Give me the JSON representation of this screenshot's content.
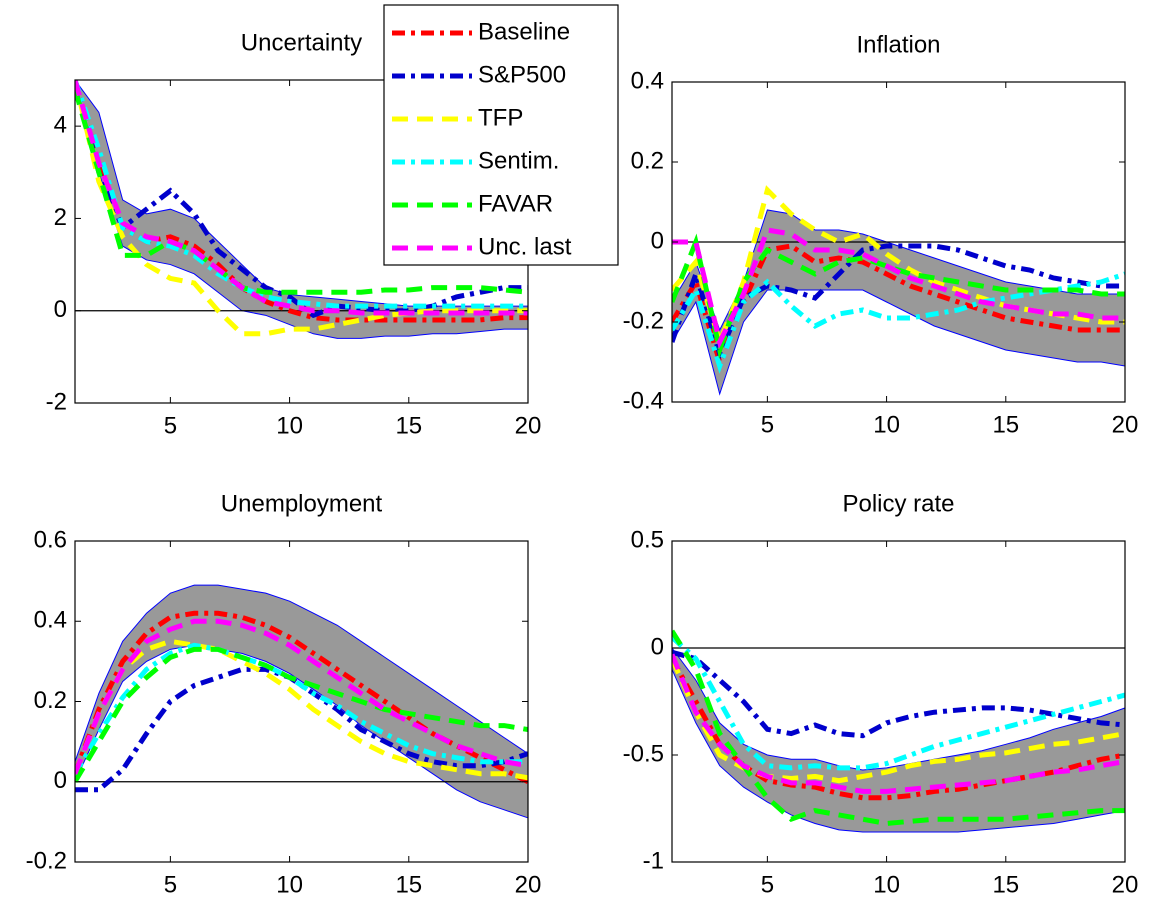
{
  "chart_data": [
    {
      "type": "line",
      "title": "Uncertainty",
      "x": [
        1,
        2,
        3,
        4,
        5,
        6,
        7,
        8,
        9,
        10,
        11,
        12,
        13,
        14,
        15,
        16,
        17,
        18,
        19,
        20
      ],
      "xlim": [
        1,
        20
      ],
      "xticks": [
        5,
        10,
        15,
        20
      ],
      "ylim": [
        -2,
        5
      ],
      "yticks": [
        -2,
        0,
        2,
        4
      ],
      "reference_line": 0,
      "band": {
        "color": "#999999",
        "edge_color": "#0000ff",
        "upper": [
          5,
          4.3,
          2.4,
          2.1,
          2.2,
          2.0,
          1.5,
          1.0,
          0.5,
          0.35,
          0.3,
          0.25,
          0.2,
          0.15,
          0.1,
          0.1,
          0.1,
          0.1,
          0.1,
          0.1
        ],
        "lower": [
          5,
          3.0,
          1.4,
          1.1,
          1.0,
          0.8,
          0.4,
          0.0,
          -0.1,
          -0.3,
          -0.5,
          -0.6,
          -0.6,
          -0.55,
          -0.55,
          -0.5,
          -0.5,
          -0.45,
          -0.4,
          -0.4
        ]
      },
      "series": [
        {
          "name": "Baseline",
          "color": "#ff0000",
          "dash": "dashdot",
          "values": [
            5,
            3.3,
            1.8,
            1.5,
            1.6,
            1.4,
            1.0,
            0.5,
            0.2,
            0.0,
            -0.15,
            -0.2,
            -0.2,
            -0.2,
            -0.2,
            -0.2,
            -0.2,
            -0.2,
            -0.15,
            -0.15
          ]
        },
        {
          "name": "S&P500",
          "color": "#0000cc",
          "dash": "dashdot",
          "values": [
            5,
            3.0,
            1.8,
            2.2,
            2.6,
            2.1,
            1.3,
            0.9,
            0.5,
            0.3,
            -0.1,
            0.1,
            0.05,
            0.0,
            0.0,
            0.1,
            0.3,
            0.4,
            0.5,
            0.5
          ]
        },
        {
          "name": "TFP",
          "color": "#ffff00",
          "dash": "dashed",
          "values": [
            5,
            2.8,
            1.6,
            1.0,
            0.7,
            0.6,
            0.0,
            -0.5,
            -0.5,
            -0.4,
            -0.4,
            -0.3,
            -0.2,
            -0.1,
            -0.05,
            0.0,
            0.0,
            0.0,
            0.0,
            0.0
          ]
        },
        {
          "name": "Sentim.",
          "color": "#00ffff",
          "dash": "dashdot",
          "values": [
            5,
            3.5,
            1.8,
            1.5,
            1.4,
            1.2,
            0.8,
            0.5,
            0.3,
            0.2,
            0.15,
            0.1,
            0.1,
            0.1,
            0.1,
            0.1,
            0.1,
            0.1,
            0.1,
            0.1
          ]
        },
        {
          "name": "FAVAR",
          "color": "#00ff00",
          "dash": "dashed",
          "values": [
            4.8,
            3.0,
            1.2,
            1.2,
            1.5,
            1.3,
            0.9,
            0.5,
            0.4,
            0.4,
            0.4,
            0.4,
            0.4,
            0.45,
            0.45,
            0.5,
            0.5,
            0.5,
            0.45,
            0.4
          ]
        },
        {
          "name": "Unc. last",
          "color": "#ff00ff",
          "dash": "dashed",
          "values": [
            5,
            3.2,
            1.9,
            1.6,
            1.5,
            1.3,
            0.9,
            0.5,
            0.2,
            0.1,
            0.0,
            0.0,
            -0.05,
            -0.05,
            -0.05,
            -0.05,
            -0.05,
            -0.05,
            -0.05,
            -0.05
          ]
        }
      ]
    },
    {
      "type": "line",
      "title": "Inflation",
      "x": [
        1,
        2,
        3,
        4,
        5,
        6,
        7,
        8,
        9,
        10,
        11,
        12,
        13,
        14,
        15,
        16,
        17,
        18,
        19,
        20
      ],
      "xlim": [
        1,
        20
      ],
      "xticks": [
        5,
        10,
        15,
        20
      ],
      "ylim": [
        -0.4,
        0.4
      ],
      "yticks": [
        -0.4,
        -0.2,
        0,
        0.2,
        0.4
      ],
      "reference_line": 0,
      "band": {
        "color": "#999999",
        "edge_color": "#0000ff",
        "upper": [
          -0.15,
          -0.05,
          -0.22,
          -0.1,
          0.08,
          0.07,
          0.03,
          0.03,
          0.02,
          0.0,
          -0.02,
          -0.04,
          -0.06,
          -0.08,
          -0.1,
          -0.11,
          -0.12,
          -0.13,
          -0.13,
          -0.13
        ],
        "lower": [
          -0.25,
          -0.15,
          -0.38,
          -0.2,
          -0.12,
          -0.12,
          -0.12,
          -0.12,
          -0.12,
          -0.15,
          -0.18,
          -0.21,
          -0.23,
          -0.25,
          -0.27,
          -0.28,
          -0.29,
          -0.3,
          -0.3,
          -0.31
        ]
      },
      "series": [
        {
          "color": "#ff0000",
          "dash": "dashdot",
          "values": [
            -0.2,
            -0.1,
            -0.3,
            -0.15,
            -0.02,
            -0.01,
            -0.05,
            -0.04,
            -0.05,
            -0.08,
            -0.11,
            -0.13,
            -0.15,
            -0.17,
            -0.19,
            -0.2,
            -0.21,
            -0.22,
            -0.22,
            -0.22
          ]
        },
        {
          "color": "#0000cc",
          "dash": "dashdot",
          "values": [
            -0.25,
            -0.08,
            -0.28,
            -0.14,
            -0.11,
            -0.12,
            -0.14,
            -0.08,
            -0.02,
            -0.01,
            -0.01,
            -0.01,
            -0.02,
            -0.04,
            -0.06,
            -0.07,
            -0.09,
            -0.1,
            -0.11,
            -0.11
          ]
        },
        {
          "color": "#ffff00",
          "dash": "dashed",
          "values": [
            -0.12,
            -0.05,
            -0.25,
            -0.1,
            0.13,
            0.07,
            0.03,
            0.0,
            0.02,
            -0.03,
            -0.07,
            -0.1,
            -0.12,
            -0.14,
            -0.16,
            -0.17,
            -0.18,
            -0.19,
            -0.2,
            -0.2
          ]
        },
        {
          "color": "#00ffff",
          "dash": "dashdot",
          "values": [
            -0.22,
            -0.12,
            -0.31,
            -0.15,
            -0.1,
            -0.16,
            -0.21,
            -0.18,
            -0.17,
            -0.19,
            -0.19,
            -0.18,
            -0.17,
            -0.15,
            -0.14,
            -0.13,
            -0.12,
            -0.11,
            -0.1,
            -0.08
          ]
        },
        {
          "color": "#00ff00",
          "dash": "dashed",
          "values": [
            -0.15,
            0.0,
            -0.27,
            -0.1,
            -0.02,
            -0.05,
            -0.08,
            -0.05,
            -0.04,
            -0.06,
            -0.08,
            -0.09,
            -0.1,
            -0.11,
            -0.12,
            -0.12,
            -0.12,
            -0.12,
            -0.13,
            -0.13
          ]
        },
        {
          "color": "#ff00ff",
          "dash": "dashed",
          "values": [
            0.0,
            0.0,
            -0.25,
            -0.13,
            0.03,
            0.02,
            -0.02,
            -0.02,
            -0.03,
            -0.06,
            -0.09,
            -0.11,
            -0.13,
            -0.15,
            -0.16,
            -0.17,
            -0.18,
            -0.18,
            -0.19,
            -0.19
          ]
        }
      ]
    },
    {
      "type": "line",
      "title": "Unemployment",
      "x": [
        1,
        2,
        3,
        4,
        5,
        6,
        7,
        8,
        9,
        10,
        11,
        12,
        13,
        14,
        15,
        16,
        17,
        18,
        19,
        20
      ],
      "xlim": [
        1,
        20
      ],
      "xticks": [
        5,
        10,
        15,
        20
      ],
      "ylim": [
        -0.2,
        0.6
      ],
      "yticks": [
        -0.2,
        0,
        0.2,
        0.4,
        0.6
      ],
      "reference_line": 0,
      "band": {
        "color": "#999999",
        "edge_color": "#0000ff",
        "upper": [
          0.05,
          0.22,
          0.35,
          0.42,
          0.47,
          0.49,
          0.49,
          0.48,
          0.47,
          0.45,
          0.42,
          0.39,
          0.35,
          0.31,
          0.27,
          0.23,
          0.19,
          0.15,
          0.11,
          0.07
        ],
        "lower": [
          0.0,
          0.13,
          0.25,
          0.3,
          0.33,
          0.34,
          0.33,
          0.32,
          0.3,
          0.27,
          0.23,
          0.19,
          0.14,
          0.1,
          0.06,
          0.02,
          -0.02,
          -0.05,
          -0.07,
          -0.09
        ]
      },
      "series": [
        {
          "color": "#ff0000",
          "dash": "dashdot",
          "values": [
            0.02,
            0.18,
            0.3,
            0.37,
            0.41,
            0.42,
            0.42,
            0.41,
            0.39,
            0.36,
            0.32,
            0.28,
            0.24,
            0.2,
            0.16,
            0.12,
            0.09,
            0.06,
            0.03,
            0.0
          ]
        },
        {
          "color": "#0000cc",
          "dash": "dashdot",
          "values": [
            -0.02,
            -0.02,
            0.03,
            0.12,
            0.2,
            0.24,
            0.26,
            0.28,
            0.28,
            0.26,
            0.22,
            0.18,
            0.13,
            0.1,
            0.07,
            0.05,
            0.04,
            0.04,
            0.05,
            0.07
          ]
        },
        {
          "color": "#ffff00",
          "dash": "dashed",
          "values": [
            0.02,
            0.17,
            0.28,
            0.33,
            0.35,
            0.34,
            0.33,
            0.3,
            0.27,
            0.23,
            0.18,
            0.14,
            0.1,
            0.07,
            0.05,
            0.04,
            0.03,
            0.02,
            0.02,
            0.01
          ]
        },
        {
          "color": "#00ffff",
          "dash": "dashdot",
          "values": [
            0.02,
            0.12,
            0.21,
            0.28,
            0.32,
            0.34,
            0.33,
            0.31,
            0.29,
            0.26,
            0.22,
            0.19,
            0.15,
            0.12,
            0.09,
            0.07,
            0.06,
            0.05,
            0.05,
            0.05
          ]
        },
        {
          "color": "#00ff00",
          "dash": "dashed",
          "values": [
            0.0,
            0.1,
            0.2,
            0.26,
            0.31,
            0.33,
            0.33,
            0.31,
            0.29,
            0.26,
            0.24,
            0.22,
            0.2,
            0.18,
            0.17,
            0.16,
            0.15,
            0.14,
            0.14,
            0.13
          ]
        },
        {
          "color": "#ff00ff",
          "dash": "dashed",
          "values": [
            0.02,
            0.17,
            0.28,
            0.35,
            0.38,
            0.4,
            0.4,
            0.39,
            0.37,
            0.34,
            0.3,
            0.26,
            0.22,
            0.18,
            0.15,
            0.12,
            0.09,
            0.07,
            0.05,
            0.04
          ]
        }
      ]
    },
    {
      "type": "line",
      "title": "Policy rate",
      "x": [
        1,
        2,
        3,
        4,
        5,
        6,
        7,
        8,
        9,
        10,
        11,
        12,
        13,
        14,
        15,
        16,
        17,
        18,
        19,
        20
      ],
      "xlim": [
        1,
        20
      ],
      "xticks": [
        5,
        10,
        15,
        20
      ],
      "ylim": [
        -1,
        0.5
      ],
      "yticks": [
        -1,
        -0.5,
        0,
        0.5
      ],
      "reference_line": 0,
      "band": {
        "color": "#999999",
        "edge_color": "#0000ff",
        "upper": [
          0.0,
          -0.15,
          -0.35,
          -0.45,
          -0.5,
          -0.52,
          -0.52,
          -0.55,
          -0.57,
          -0.56,
          -0.54,
          -0.52,
          -0.5,
          -0.48,
          -0.45,
          -0.42,
          -0.38,
          -0.35,
          -0.32,
          -0.28
        ],
        "lower": [
          -0.1,
          -0.35,
          -0.55,
          -0.65,
          -0.72,
          -0.78,
          -0.82,
          -0.85,
          -0.86,
          -0.86,
          -0.86,
          -0.86,
          -0.86,
          -0.85,
          -0.84,
          -0.83,
          -0.82,
          -0.8,
          -0.78,
          -0.76
        ]
      },
      "series": [
        {
          "color": "#ff0000",
          "dash": "dashdot",
          "values": [
            -0.05,
            -0.25,
            -0.45,
            -0.55,
            -0.62,
            -0.64,
            -0.65,
            -0.68,
            -0.7,
            -0.7,
            -0.69,
            -0.67,
            -0.66,
            -0.64,
            -0.62,
            -0.6,
            -0.58,
            -0.55,
            -0.52,
            -0.5
          ]
        },
        {
          "color": "#0000cc",
          "dash": "dashdot",
          "values": [
            -0.02,
            -0.05,
            -0.15,
            -0.25,
            -0.38,
            -0.4,
            -0.36,
            -0.4,
            -0.41,
            -0.35,
            -0.32,
            -0.3,
            -0.29,
            -0.28,
            -0.28,
            -0.29,
            -0.31,
            -0.33,
            -0.35,
            -0.36
          ]
        },
        {
          "color": "#ffff00",
          "dash": "dashed",
          "values": [
            -0.05,
            -0.3,
            -0.5,
            -0.56,
            -0.6,
            -0.61,
            -0.6,
            -0.62,
            -0.6,
            -0.58,
            -0.55,
            -0.53,
            -0.52,
            -0.5,
            -0.49,
            -0.47,
            -0.45,
            -0.44,
            -0.42,
            -0.4
          ]
        },
        {
          "color": "#00ffff",
          "dash": "dashdot",
          "values": [
            0.05,
            -0.05,
            -0.25,
            -0.45,
            -0.55,
            -0.56,
            -0.55,
            -0.56,
            -0.56,
            -0.54,
            -0.5,
            -0.46,
            -0.43,
            -0.4,
            -0.37,
            -0.34,
            -0.31,
            -0.28,
            -0.25,
            -0.22
          ]
        },
        {
          "color": "#00ff00",
          "dash": "dashed",
          "values": [
            0.08,
            -0.1,
            -0.4,
            -0.55,
            -0.7,
            -0.8,
            -0.76,
            -0.78,
            -0.8,
            -0.82,
            -0.81,
            -0.8,
            -0.8,
            -0.8,
            -0.8,
            -0.79,
            -0.78,
            -0.77,
            -0.76,
            -0.76
          ]
        },
        {
          "color": "#ff00ff",
          "dash": "dashed",
          "values": [
            -0.03,
            -0.3,
            -0.45,
            -0.55,
            -0.6,
            -0.63,
            -0.63,
            -0.65,
            -0.67,
            -0.67,
            -0.66,
            -0.65,
            -0.64,
            -0.63,
            -0.62,
            -0.6,
            -0.58,
            -0.57,
            -0.55,
            -0.53
          ]
        }
      ]
    }
  ]
}
